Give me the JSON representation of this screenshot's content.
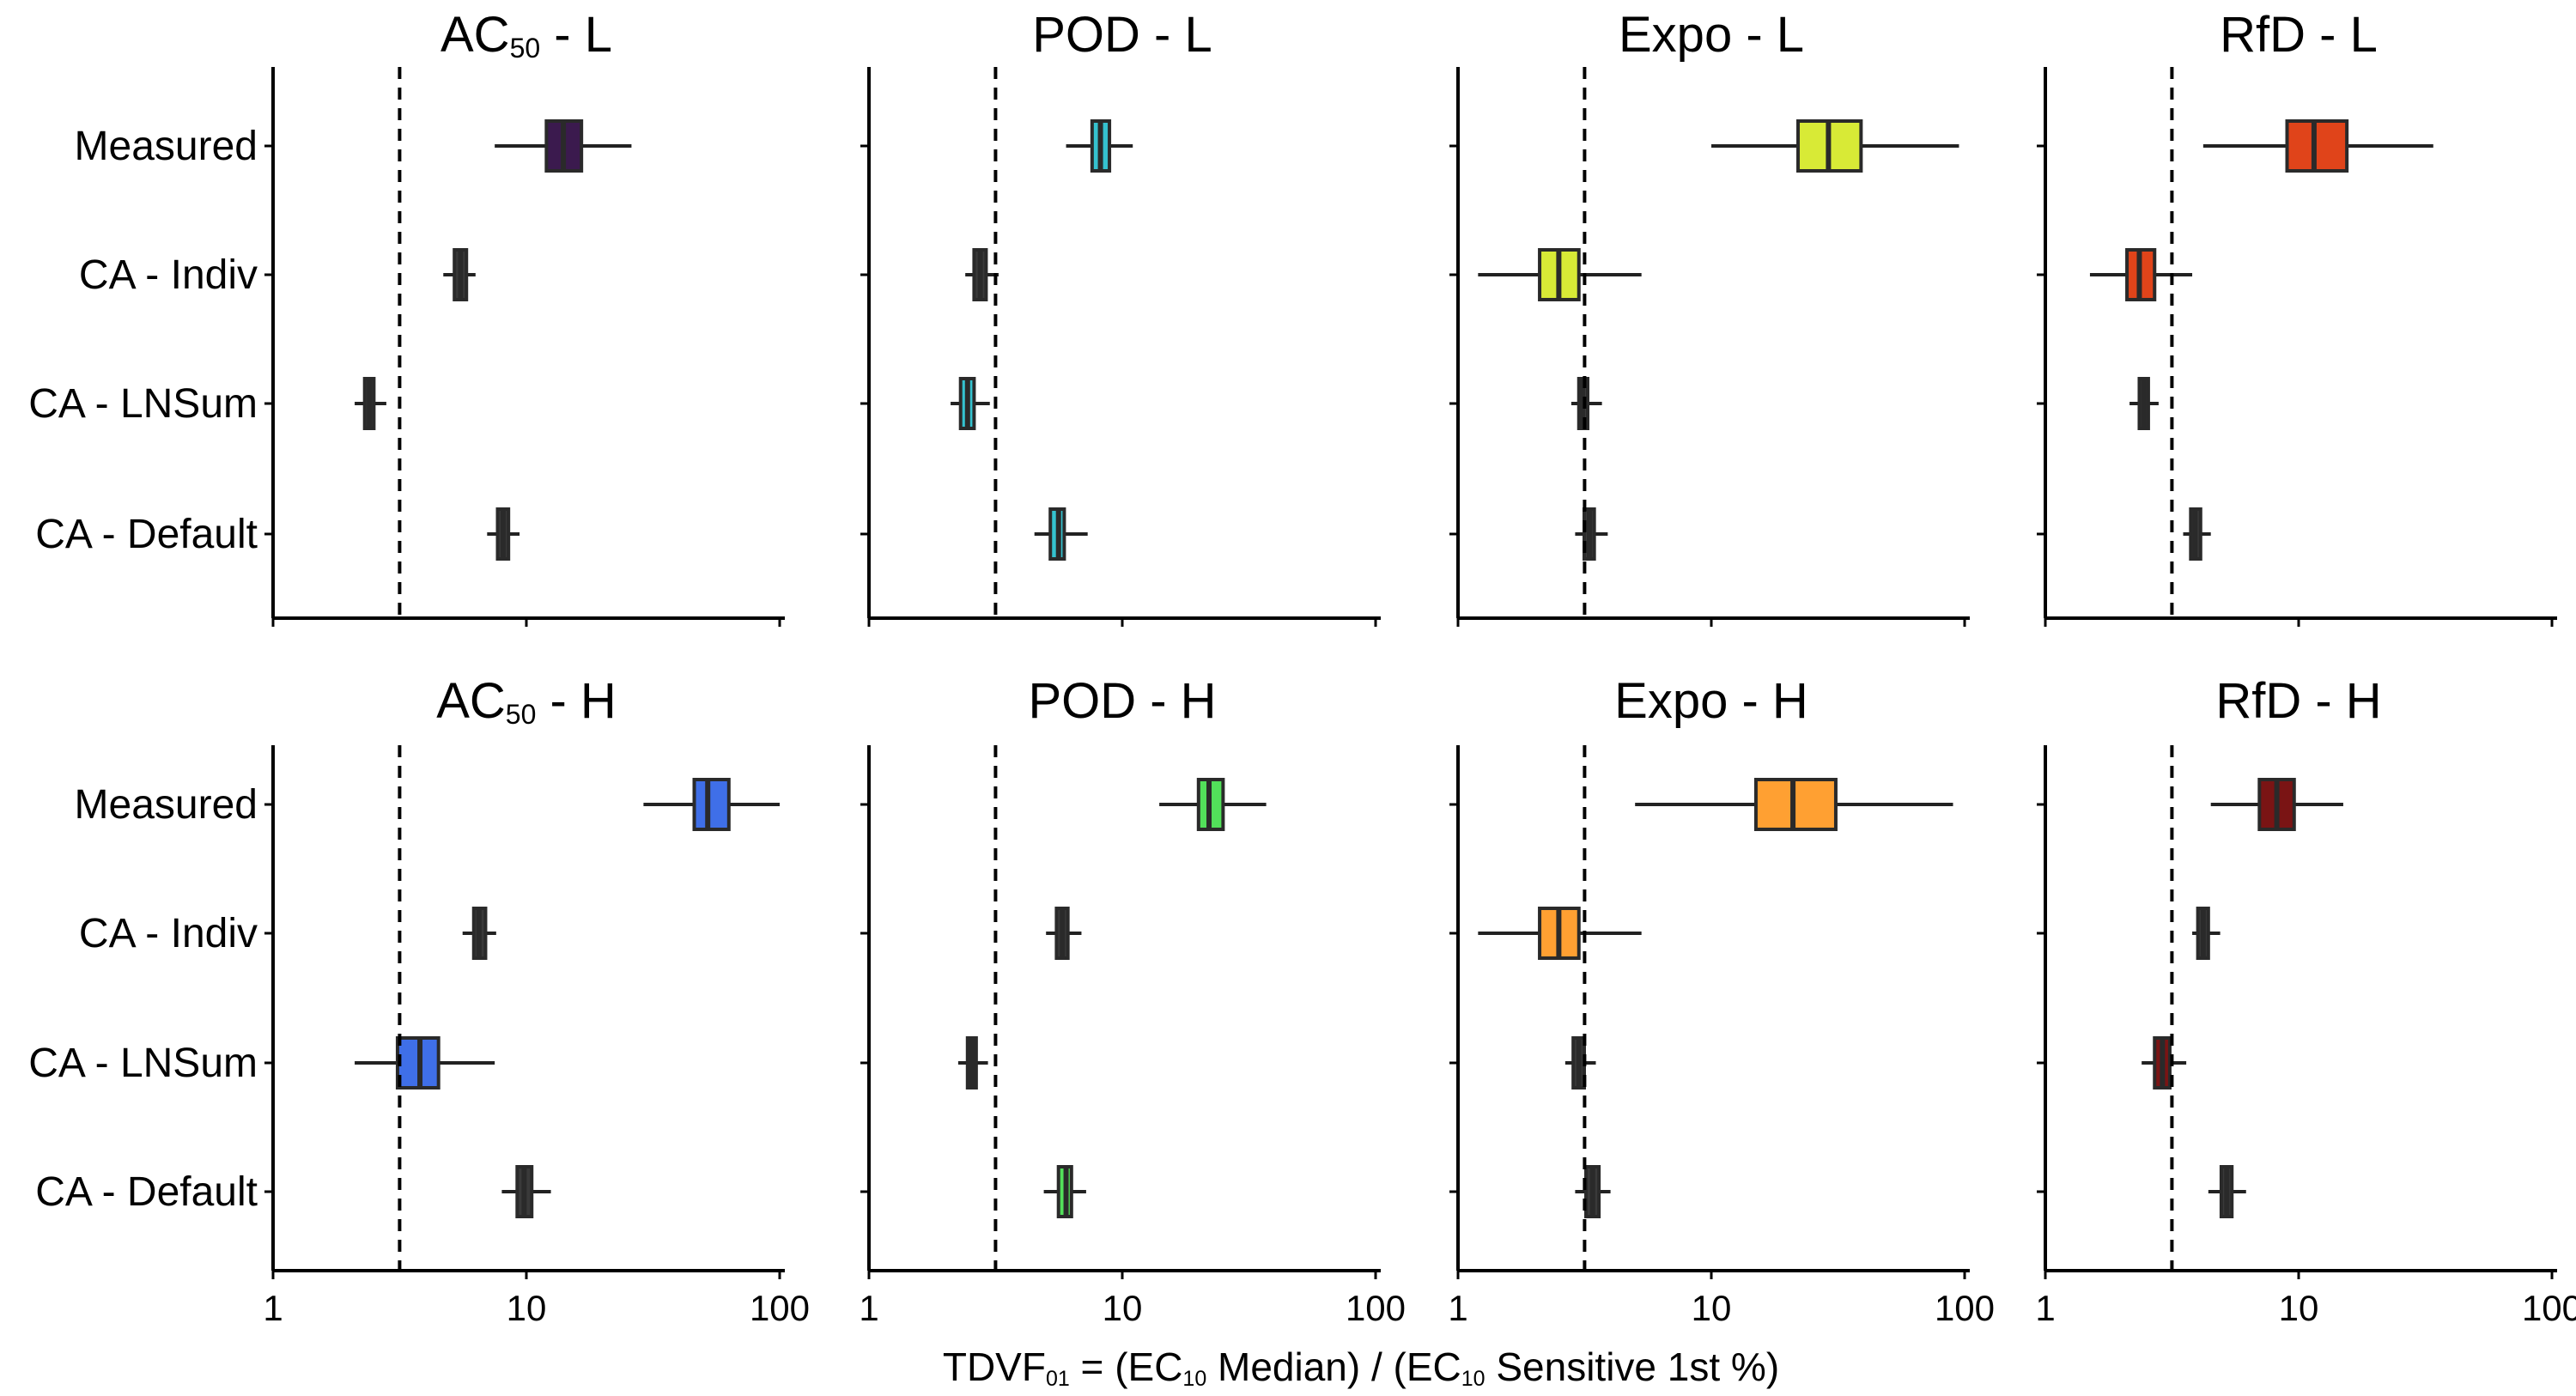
{
  "chart_data": {
    "type": "boxplot",
    "scale": "log10",
    "xlim": [
      1,
      100
    ],
    "x_ticks": [
      "1",
      "10",
      "100"
    ],
    "reference_line": 3.16,
    "categories": [
      "Measured",
      "CA - Indiv",
      "CA - LNSum",
      "CA - Default"
    ],
    "xlabel": {
      "parts": [
        {
          "t": "TDVF",
          "s": "normal"
        },
        {
          "t": "01",
          "s": "sub"
        },
        {
          "t": " = (EC",
          "s": "normal"
        },
        {
          "t": "10",
          "s": "sub"
        },
        {
          "t": " Median) / (EC",
          "s": "normal"
        },
        {
          "t": "10",
          "s": "sub"
        },
        {
          "t": " Sensitive 1st %)",
          "s": "normal"
        }
      ]
    },
    "panels": [
      {
        "title": [
          {
            "t": "AC",
            "s": "normal"
          },
          {
            "t": "50",
            "s": "sub"
          },
          {
            "t": " - L",
            "s": "normal"
          }
        ],
        "color": "#3b1a4e",
        "boxes": [
          {
            "category": "Measured",
            "min": 7.5,
            "q1": 12,
            "median": 14,
            "q3": 16.5,
            "max": 26,
            "filled": true
          },
          {
            "category": "CA - Indiv",
            "min": 4.7,
            "q1": 5.2,
            "median": 5.5,
            "q3": 5.8,
            "max": 6.3,
            "filled": false
          },
          {
            "category": "CA - LNSum",
            "min": 2.1,
            "q1": 2.3,
            "median": 2.4,
            "q3": 2.5,
            "max": 2.8,
            "filled": false
          },
          {
            "category": "CA - Default",
            "min": 7.0,
            "q1": 7.7,
            "median": 8.1,
            "q3": 8.5,
            "max": 9.4,
            "filled": false
          }
        ]
      },
      {
        "title": [
          {
            "t": "POD - L",
            "s": "normal"
          }
        ],
        "color": "#35c2cf",
        "boxes": [
          {
            "category": "Measured",
            "min": 6.0,
            "q1": 7.6,
            "median": 8.2,
            "q3": 8.9,
            "max": 11,
            "filled": true
          },
          {
            "category": "CA - Indiv",
            "min": 2.4,
            "q1": 2.6,
            "median": 2.75,
            "q3": 2.9,
            "max": 3.25,
            "filled": false
          },
          {
            "category": "CA - LNSum",
            "min": 2.1,
            "q1": 2.3,
            "median": 2.45,
            "q3": 2.6,
            "max": 3.0,
            "filled": true
          },
          {
            "category": "CA - Default",
            "min": 4.5,
            "q1": 5.2,
            "median": 5.6,
            "q3": 5.9,
            "max": 7.3,
            "filled": true
          }
        ]
      },
      {
        "title": [
          {
            "t": "Expo - L",
            "s": "normal"
          }
        ],
        "color": "#d8ea36",
        "boxes": [
          {
            "category": "Measured",
            "min": 10,
            "q1": 22,
            "median": 29,
            "q3": 39,
            "max": 95,
            "filled": true
          },
          {
            "category": "CA - Indiv",
            "min": 1.2,
            "q1": 2.1,
            "median": 2.5,
            "q3": 3.0,
            "max": 5.3,
            "filled": true
          },
          {
            "category": "CA - LNSum",
            "min": 2.8,
            "q1": 3.0,
            "median": 3.1,
            "q3": 3.25,
            "max": 3.7,
            "filled": false
          },
          {
            "category": "CA - Default",
            "min": 2.9,
            "q1": 3.15,
            "median": 3.3,
            "q3": 3.45,
            "max": 3.9,
            "filled": false
          }
        ]
      },
      {
        "title": [
          {
            "t": "RfD - L",
            "s": "normal"
          }
        ],
        "color": "#e0441a",
        "boxes": [
          {
            "category": "Measured",
            "min": 4.2,
            "q1": 9,
            "median": 11.5,
            "q3": 15.5,
            "max": 34,
            "filled": true
          },
          {
            "category": "CA - Indiv",
            "min": 1.5,
            "q1": 2.1,
            "median": 2.35,
            "q3": 2.7,
            "max": 3.8,
            "filled": true
          },
          {
            "category": "CA - LNSum",
            "min": 2.15,
            "q1": 2.35,
            "median": 2.45,
            "q3": 2.55,
            "max": 2.8,
            "filled": false
          },
          {
            "category": "CA - Default",
            "min": 3.5,
            "q1": 3.75,
            "median": 3.9,
            "q3": 4.1,
            "max": 4.5,
            "filled": false
          }
        ]
      },
      {
        "title": [
          {
            "t": "AC",
            "s": "normal"
          },
          {
            "t": "50",
            "s": "sub"
          },
          {
            "t": " - H",
            "s": "normal"
          }
        ],
        "color": "#3f6fe8",
        "boxes": [
          {
            "category": "Measured",
            "min": 29,
            "q1": 46,
            "median": 52,
            "q3": 63,
            "max": 100,
            "filled": true
          },
          {
            "category": "CA - Indiv",
            "min": 5.6,
            "q1": 6.2,
            "median": 6.5,
            "q3": 6.9,
            "max": 7.6,
            "filled": false
          },
          {
            "category": "CA - LNSum",
            "min": 2.1,
            "q1": 3.1,
            "median": 3.8,
            "q3": 4.5,
            "max": 7.5,
            "filled": true
          },
          {
            "category": "CA - Default",
            "min": 8.0,
            "q1": 9.2,
            "median": 9.8,
            "q3": 10.5,
            "max": 12.5,
            "filled": false
          }
        ]
      },
      {
        "title": [
          {
            "t": "POD - H",
            "s": "normal"
          }
        ],
        "color": "#52e05a",
        "boxes": [
          {
            "category": "Measured",
            "min": 14,
            "q1": 20,
            "median": 22,
            "q3": 25,
            "max": 37,
            "filled": true
          },
          {
            "category": "CA - Indiv",
            "min": 5.0,
            "q1": 5.5,
            "median": 5.8,
            "q3": 6.1,
            "max": 6.9,
            "filled": false
          },
          {
            "category": "CA - LNSum",
            "min": 2.25,
            "q1": 2.45,
            "median": 2.55,
            "q3": 2.65,
            "max": 2.95,
            "filled": false
          },
          {
            "category": "CA - Default",
            "min": 4.9,
            "q1": 5.6,
            "median": 6.0,
            "q3": 6.3,
            "max": 7.2,
            "filled": true
          }
        ]
      },
      {
        "title": [
          {
            "t": "Expo - H",
            "s": "normal"
          }
        ],
        "color": "#ffa032",
        "boxes": [
          {
            "category": "Measured",
            "min": 5,
            "q1": 15,
            "median": 21,
            "q3": 31,
            "max": 90,
            "filled": true
          },
          {
            "category": "CA - Indiv",
            "min": 1.2,
            "q1": 2.1,
            "median": 2.5,
            "q3": 3.0,
            "max": 5.3,
            "filled": true
          },
          {
            "category": "CA - LNSum",
            "min": 2.65,
            "q1": 2.85,
            "median": 3.0,
            "q3": 3.15,
            "max": 3.5,
            "filled": false
          },
          {
            "category": "CA - Default",
            "min": 2.9,
            "q1": 3.2,
            "median": 3.4,
            "q3": 3.6,
            "max": 4.0,
            "filled": false
          }
        ]
      },
      {
        "title": [
          {
            "t": "RfD - H",
            "s": "normal"
          }
        ],
        "color": "#7a1414",
        "boxes": [
          {
            "category": "Measured",
            "min": 4.5,
            "q1": 7,
            "median": 8.2,
            "q3": 9.6,
            "max": 15,
            "filled": true
          },
          {
            "category": "CA - Indiv",
            "min": 3.8,
            "q1": 4.0,
            "median": 4.2,
            "q3": 4.4,
            "max": 4.9,
            "filled": false
          },
          {
            "category": "CA - LNSum",
            "min": 2.4,
            "q1": 2.7,
            "median": 2.9,
            "q3": 3.1,
            "max": 3.6,
            "filled": true
          },
          {
            "category": "CA - Default",
            "min": 4.4,
            "q1": 4.95,
            "median": 5.2,
            "q3": 5.45,
            "max": 6.2,
            "filled": false
          }
        ]
      }
    ]
  }
}
